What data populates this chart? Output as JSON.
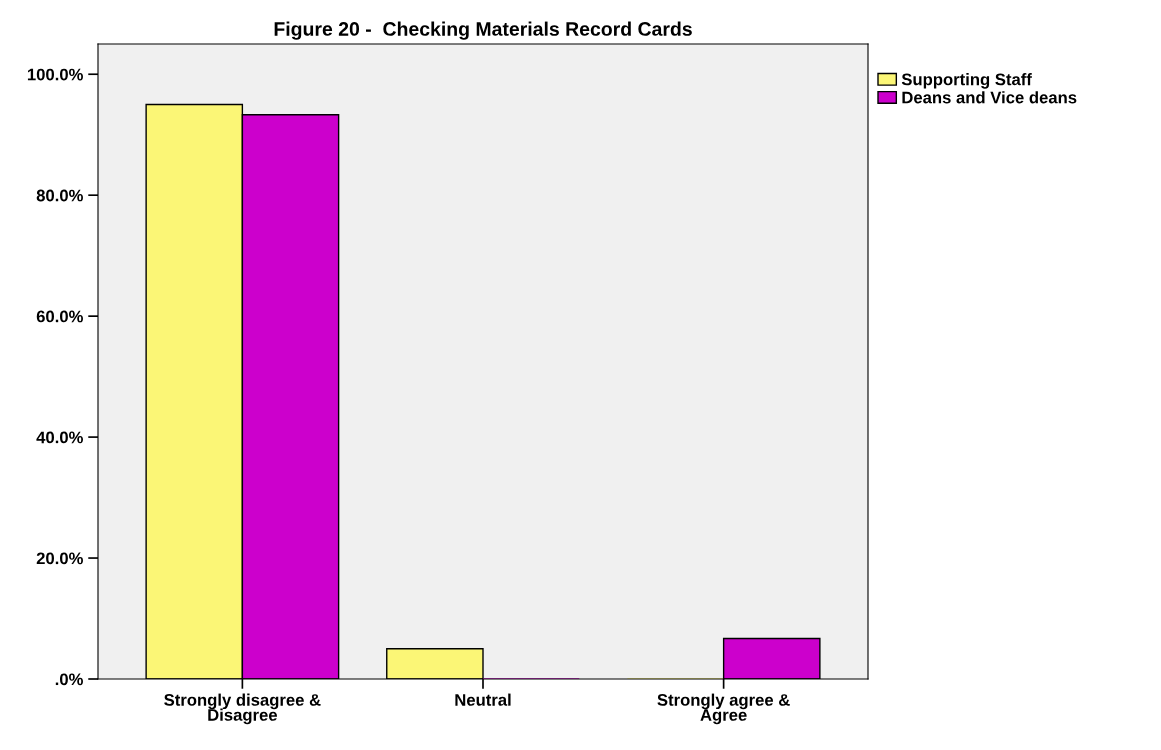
{
  "chart_data": {
    "type": "bar",
    "title": "Figure 20 -  Checking Materials Record Cards",
    "categories": [
      "Strongly disagree &\nDisagree",
      "Neutral",
      "Strongly agree &\nAgree"
    ],
    "series": [
      {
        "name": "Supporting Staff",
        "color": "#fbf676",
        "values": [
          95.0,
          5.0,
          0.0
        ]
      },
      {
        "name": "Deans and Vice deans",
        "color": "#cc00cc",
        "values": [
          93.3,
          0.0,
          6.7
        ]
      }
    ],
    "ylim": [
      0,
      105
    ],
    "yticks": [
      {
        "value": 0,
        "label": ".0%"
      },
      {
        "value": 20,
        "label": "20.0%"
      },
      {
        "value": 40,
        "label": "40.0%"
      },
      {
        "value": 60,
        "label": "60.0%"
      },
      {
        "value": 80,
        "label": "80.0%"
      },
      {
        "value": 100,
        "label": "100.0%"
      }
    ],
    "grid": false,
    "legend": "top right"
  }
}
